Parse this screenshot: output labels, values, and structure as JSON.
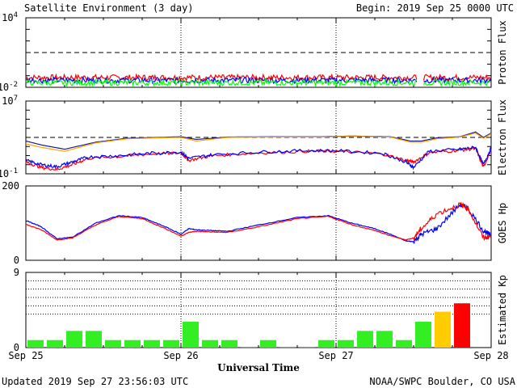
{
  "header": {
    "title": "Satellite Environment (3 day)",
    "begin": "Begin:  2019 Sep 25 0000 UTC"
  },
  "footer": {
    "updated": "Updated 2019 Sep 27 23:56:03 UTC",
    "credit": "NOAA/SWPC Boulder, CO USA",
    "xlabel": "Universal Time"
  },
  "x_ticks": [
    "Sep 25",
    "Sep 26",
    "Sep 27",
    "Sep 28"
  ],
  "colors": {
    "red": "#ff0000",
    "blue": "#0000ff",
    "green": "#00ff00",
    "orange": "#ffa500",
    "navy": "#1a1a8c",
    "kp_green": "#33ee22",
    "kp_yellow": "#ffcc00",
    "kp_red": "#ff0000"
  },
  "chart_data": [
    {
      "type": "line",
      "ylabel": "Proton Flux",
      "yscale": "log",
      "ylim": [
        0.01,
        10000
      ],
      "ytick_labels": [
        {
          "base": "10",
          "exp": "4"
        },
        {
          "base": "10",
          "exp": "-2"
        }
      ],
      "threshold": 10,
      "x_range_days": [
        0,
        3
      ],
      "data_gap_days": [
        2.52,
        2.56
      ],
      "series": [
        {
          "color": "red",
          "level": 0.07
        },
        {
          "color": "blue",
          "level": 0.04
        },
        {
          "color": "green",
          "level": 0.025
        }
      ]
    },
    {
      "type": "line",
      "ylabel": "Electron Flux",
      "yscale": "log",
      "ylim": [
        0.1,
        10000000
      ],
      "ytick_labels": [
        {
          "base": "10",
          "exp": "7"
        },
        {
          "base": "10",
          "exp": "-1"
        }
      ],
      "threshold": 1000,
      "x_range_days": [
        0,
        3
      ],
      "series": [
        {
          "color": "navy",
          "x": [
            0,
            0.1,
            0.25,
            0.45,
            0.65,
            0.85,
            1.0,
            1.1,
            1.3,
            1.6,
            1.9,
            2.1,
            2.35,
            2.48,
            2.55,
            2.65,
            2.8,
            2.9,
            2.95,
            3.0
          ],
          "y": [
            400,
            150,
            50,
            300,
            800,
            1000,
            1200,
            600,
            1100,
            1200,
            1200,
            1400,
            1200,
            400,
            400,
            900,
            1200,
            4000,
            1000,
            3000
          ]
        },
        {
          "color": "orange",
          "x": [
            0,
            0.1,
            0.25,
            0.45,
            0.65,
            0.85,
            1.0,
            1.1,
            1.3,
            1.6,
            1.9,
            2.1,
            2.35,
            2.48,
            2.55,
            2.65,
            2.8,
            2.9,
            2.95,
            3.0
          ],
          "y": [
            200,
            80,
            30,
            250,
            700,
            900,
            1000,
            400,
            1000,
            1100,
            1100,
            1300,
            1100,
            300,
            300,
            700,
            1100,
            3000,
            800,
            2500
          ]
        },
        {
          "color": "red",
          "x": [
            0,
            0.1,
            0.2,
            0.3,
            0.4,
            0.6,
            0.8,
            1.0,
            1.05,
            1.2,
            1.5,
            1.8,
            2.0,
            2.3,
            2.45,
            2.5,
            2.6,
            2.8,
            2.9,
            2.95,
            3.0
          ],
          "y": [
            2,
            0.5,
            0.3,
            1,
            5,
            8,
            15,
            20,
            3,
            10,
            20,
            30,
            30,
            15,
            3,
            2,
            20,
            40,
            60,
            0.5,
            50
          ]
        },
        {
          "color": "blue",
          "x": [
            0,
            0.1,
            0.2,
            0.3,
            0.4,
            0.6,
            0.8,
            1.0,
            1.05,
            1.2,
            1.5,
            1.8,
            2.0,
            2.3,
            2.45,
            2.5,
            2.6,
            2.8,
            2.9,
            2.95,
            3.0
          ],
          "y": [
            3,
            1,
            0.6,
            2,
            7,
            10,
            18,
            25,
            5,
            12,
            25,
            35,
            35,
            18,
            2,
            0.5,
            30,
            50,
            80,
            1,
            70
          ]
        }
      ]
    },
    {
      "type": "line",
      "ylabel": "GOES Hp",
      "ylim": [
        0,
        200
      ],
      "yticks": [
        0,
        200
      ],
      "x_range_days": [
        0,
        3
      ],
      "series": [
        {
          "color": "blue",
          "x": [
            0,
            0.1,
            0.2,
            0.3,
            0.45,
            0.6,
            0.75,
            0.9,
            1.0,
            1.05,
            1.1,
            1.2,
            1.3,
            1.5,
            1.75,
            1.95,
            2.1,
            2.25,
            2.35,
            2.45,
            2.5,
            2.55,
            2.65,
            2.8,
            2.85,
            2.95,
            3.0
          ],
          "y": [
            107,
            90,
            58,
            62,
            100,
            120,
            115,
            90,
            70,
            85,
            82,
            80,
            78,
            95,
            115,
            120,
            100,
            85,
            70,
            52,
            50,
            70,
            85,
            150,
            140,
            80,
            65
          ]
        },
        {
          "color": "red",
          "x": [
            0,
            0.1,
            0.2,
            0.3,
            0.45,
            0.6,
            0.75,
            0.9,
            1.0,
            1.05,
            1.1,
            1.2,
            1.3,
            1.5,
            1.75,
            1.95,
            2.1,
            2.25,
            2.35,
            2.45,
            2.5,
            2.55,
            2.65,
            2.8,
            2.85,
            2.95,
            3.0
          ],
          "y": [
            97,
            82,
            55,
            60,
            95,
            118,
            112,
            85,
            65,
            75,
            78,
            76,
            75,
            90,
            112,
            118,
            96,
            80,
            66,
            55,
            60,
            85,
            125,
            150,
            140,
            60,
            65
          ]
        }
      ]
    },
    {
      "type": "bar",
      "ylabel": "Estimated Kp",
      "ylim": [
        0,
        9
      ],
      "yticks": [
        0,
        9
      ],
      "gridlines": [
        4,
        5,
        6,
        7,
        8
      ],
      "bar_hours": 3,
      "values": [
        0.9,
        0.9,
        2,
        2,
        0.9,
        0.9,
        0.9,
        0.9,
        3.1,
        0.9,
        0.9,
        0.1,
        0.9,
        0.1,
        0.1,
        0.9,
        0.9,
        2,
        2,
        0.9,
        3.1,
        4.3,
        5.3
      ],
      "bar_colors": [
        "kp_green",
        "kp_green",
        "kp_green",
        "kp_green",
        "kp_green",
        "kp_green",
        "kp_green",
        "kp_green",
        "kp_green",
        "kp_green",
        "kp_green",
        "kp_green",
        "kp_green",
        "kp_green",
        "kp_green",
        "kp_green",
        "kp_green",
        "kp_green",
        "kp_green",
        "kp_green",
        "kp_green",
        "kp_yellow",
        "kp_red"
      ]
    }
  ]
}
